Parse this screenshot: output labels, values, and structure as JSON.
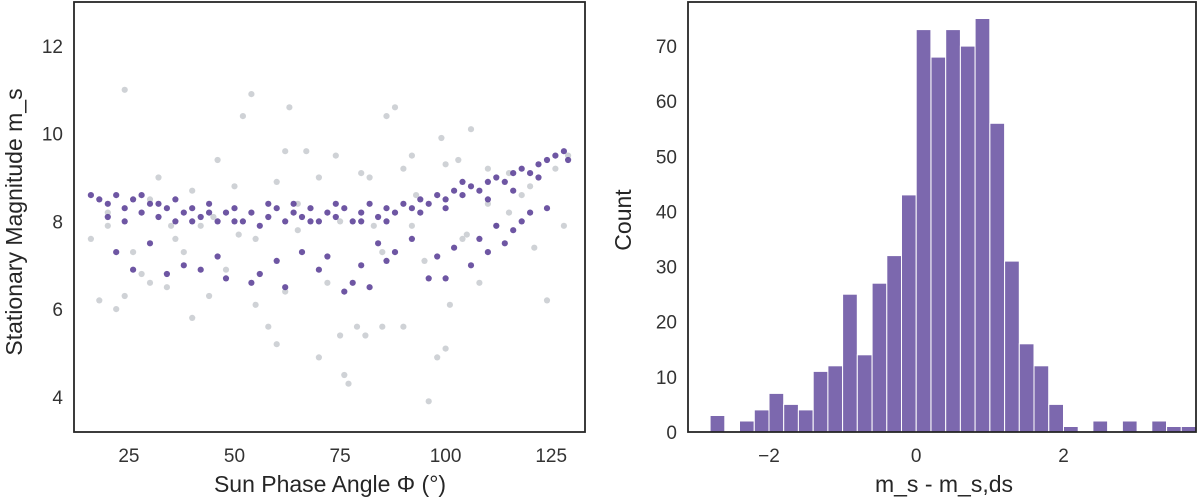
{
  "chart_data": [
    {
      "type": "scatter",
      "xlabel": "Sun Phase Angle Φ (°)",
      "ylabel": "Stationary Magnitude m_s",
      "xlim": [
        12,
        133
      ],
      "ylim": [
        13,
        3.2
      ],
      "y_inverted": true,
      "xticks": [
        25,
        50,
        75,
        100,
        125
      ],
      "yticks": [
        4,
        6,
        8,
        10,
        12
      ],
      "grid": false,
      "legend": "none",
      "series": [
        {
          "color": "#cacdd2",
          "points": [
            [
              16,
              7.6
            ],
            [
              18,
              6.2
            ],
            [
              20,
              7.9
            ],
            [
              22,
              6.0
            ],
            [
              24,
              6.3
            ],
            [
              24,
              11.0
            ],
            [
              26,
              7.3
            ],
            [
              28,
              6.8
            ],
            [
              30,
              6.6
            ],
            [
              32,
              9.0
            ],
            [
              34,
              6.5
            ],
            [
              36,
              7.6
            ],
            [
              38,
              7.3
            ],
            [
              40,
              5.8
            ],
            [
              42,
              7.9
            ],
            [
              44,
              6.3
            ],
            [
              46,
              9.4
            ],
            [
              48,
              6.9
            ],
            [
              51,
              7.7
            ],
            [
              52,
              10.4
            ],
            [
              54,
              10.9
            ],
            [
              55,
              6.1
            ],
            [
              58,
              5.6
            ],
            [
              60,
              5.2
            ],
            [
              62,
              6.4
            ],
            [
              63,
              10.6
            ],
            [
              65,
              8.4
            ],
            [
              67,
              9.6
            ],
            [
              70,
              4.9
            ],
            [
              72,
              6.6
            ],
            [
              75,
              5.4
            ],
            [
              76,
              4.5
            ],
            [
              77,
              4.3
            ],
            [
              79,
              5.6
            ],
            [
              81,
              5.4
            ],
            [
              83,
              7.9
            ],
            [
              85,
              5.6
            ],
            [
              86,
              10.4
            ],
            [
              88,
              10.6
            ],
            [
              90,
              5.6
            ],
            [
              92,
              7.9
            ],
            [
              93,
              8.6
            ],
            [
              96,
              3.9
            ],
            [
              98,
              4.9
            ],
            [
              99,
              9.9
            ],
            [
              100,
              5.1
            ],
            [
              101,
              6.1
            ],
            [
              103,
              9.4
            ],
            [
              104,
              7.6
            ],
            [
              106,
              10.1
            ],
            [
              108,
              6.6
            ],
            [
              110,
              9.2
            ],
            [
              112,
              7.9
            ],
            [
              115,
              9.1
            ],
            [
              118,
              8.6
            ],
            [
              121,
              7.4
            ],
            [
              124,
              6.2
            ],
            [
              126,
              9.2
            ],
            [
              128,
              7.9
            ],
            [
              129,
              9.5
            ],
            [
              20,
              8.2
            ],
            [
              30,
              8.5
            ],
            [
              40,
              8.7
            ],
            [
              50,
              8.8
            ],
            [
              60,
              8.9
            ],
            [
              70,
              9.0
            ],
            [
              80,
              9.1
            ],
            [
              90,
              9.2
            ],
            [
              100,
              9.3
            ],
            [
              110,
              8.4
            ],
            [
              120,
              8.8
            ],
            [
              35,
              7.9
            ],
            [
              45,
              8.1
            ],
            [
              55,
              7.6
            ],
            [
              65,
              7.8
            ],
            [
              75,
              8.0
            ],
            [
              85,
              7.3
            ],
            [
              95,
              7.1
            ],
            [
              105,
              7.7
            ],
            [
              115,
              8.2
            ],
            [
              62,
              9.6
            ],
            [
              82,
              9.0
            ],
            [
              92,
              9.5
            ],
            [
              74,
              9.5
            ]
          ]
        },
        {
          "color": "#5a3f96",
          "points": [
            [
              16,
              8.6
            ],
            [
              18,
              8.5
            ],
            [
              20,
              8.4
            ],
            [
              22,
              8.6
            ],
            [
              24,
              8.3
            ],
            [
              26,
              8.5
            ],
            [
              28,
              8.2
            ],
            [
              30,
              8.4
            ],
            [
              32,
              8.1
            ],
            [
              34,
              8.3
            ],
            [
              36,
              8.0
            ],
            [
              38,
              8.2
            ],
            [
              40,
              8.3
            ],
            [
              42,
              8.1
            ],
            [
              44,
              8.4
            ],
            [
              46,
              8.0
            ],
            [
              48,
              8.2
            ],
            [
              50,
              8.3
            ],
            [
              52,
              8.0
            ],
            [
              54,
              8.2
            ],
            [
              56,
              7.9
            ],
            [
              58,
              8.1
            ],
            [
              60,
              8.3
            ],
            [
              62,
              8.0
            ],
            [
              64,
              8.2
            ],
            [
              66,
              8.1
            ],
            [
              68,
              8.3
            ],
            [
              70,
              8.0
            ],
            [
              72,
              8.2
            ],
            [
              74,
              8.1
            ],
            [
              76,
              8.3
            ],
            [
              78,
              8.0
            ],
            [
              80,
              8.2
            ],
            [
              82,
              8.4
            ],
            [
              84,
              8.1
            ],
            [
              86,
              8.3
            ],
            [
              88,
              8.2
            ],
            [
              90,
              8.4
            ],
            [
              92,
              8.3
            ],
            [
              94,
              8.5
            ],
            [
              96,
              8.4
            ],
            [
              98,
              8.6
            ],
            [
              100,
              8.5
            ],
            [
              102,
              8.7
            ],
            [
              104,
              8.6
            ],
            [
              106,
              8.8
            ],
            [
              108,
              8.7
            ],
            [
              110,
              8.9
            ],
            [
              112,
              9.0
            ],
            [
              114,
              8.9
            ],
            [
              116,
              9.1
            ],
            [
              118,
              9.2
            ],
            [
              120,
              9.1
            ],
            [
              122,
              9.3
            ],
            [
              124,
              9.4
            ],
            [
              126,
              9.5
            ],
            [
              128,
              9.6
            ],
            [
              129,
              9.4
            ],
            [
              22,
              7.3
            ],
            [
              26,
              6.9
            ],
            [
              30,
              7.5
            ],
            [
              34,
              6.8
            ],
            [
              38,
              7.0
            ],
            [
              42,
              6.9
            ],
            [
              46,
              7.2
            ],
            [
              48,
              6.7
            ],
            [
              54,
              6.6
            ],
            [
              56,
              6.8
            ],
            [
              60,
              7.1
            ],
            [
              62,
              6.5
            ],
            [
              66,
              7.3
            ],
            [
              70,
              6.9
            ],
            [
              72,
              7.2
            ],
            [
              76,
              6.4
            ],
            [
              78,
              6.6
            ],
            [
              80,
              7.0
            ],
            [
              82,
              6.5
            ],
            [
              84,
              7.5
            ],
            [
              86,
              7.1
            ],
            [
              88,
              7.3
            ],
            [
              92,
              7.6
            ],
            [
              96,
              6.7
            ],
            [
              98,
              7.2
            ],
            [
              100,
              6.7
            ],
            [
              102,
              7.4
            ],
            [
              106,
              7.0
            ],
            [
              108,
              7.6
            ],
            [
              110,
              7.3
            ],
            [
              112,
              7.9
            ],
            [
              114,
              7.5
            ],
            [
              116,
              7.8
            ],
            [
              118,
              8.0
            ],
            [
              120,
              8.2
            ],
            [
              124,
              8.3
            ],
            [
              20,
              8.1
            ],
            [
              24,
              8.0
            ],
            [
              28,
              8.6
            ],
            [
              32,
              8.4
            ],
            [
              36,
              8.5
            ],
            [
              40,
              8.0
            ],
            [
              44,
              8.2
            ],
            [
              50,
              8.0
            ],
            [
              58,
              8.4
            ],
            [
              64,
              8.4
            ],
            [
              68,
              8.0
            ],
            [
              74,
              8.4
            ],
            [
              80,
              8.0
            ],
            [
              86,
              8.0
            ],
            [
              94,
              8.2
            ],
            [
              100,
              8.3
            ],
            [
              104,
              8.9
            ],
            [
              110,
              8.5
            ],
            [
              116,
              8.7
            ],
            [
              122,
              9.0
            ]
          ]
        }
      ]
    },
    {
      "type": "bar",
      "xlabel": "m_s - m_s,ds",
      "ylabel": "Count",
      "xlim": [
        -3.1,
        3.8
      ],
      "ylim": [
        0,
        78
      ],
      "xticks": [
        -2,
        0,
        2
      ],
      "yticks": [
        0,
        10,
        20,
        30,
        40,
        50,
        60,
        70
      ],
      "bin_width": 0.2,
      "grid": false,
      "color": "#7c68ae",
      "bins": [
        {
          "x": -2.7,
          "count": 3
        },
        {
          "x": -2.5,
          "count": 0
        },
        {
          "x": -2.3,
          "count": 2
        },
        {
          "x": -2.1,
          "count": 4
        },
        {
          "x": -1.9,
          "count": 7
        },
        {
          "x": -1.7,
          "count": 5
        },
        {
          "x": -1.5,
          "count": 4
        },
        {
          "x": -1.3,
          "count": 11
        },
        {
          "x": -1.1,
          "count": 12
        },
        {
          "x": -0.9,
          "count": 25
        },
        {
          "x": -0.7,
          "count": 14
        },
        {
          "x": -0.5,
          "count": 27
        },
        {
          "x": -0.3,
          "count": 32
        },
        {
          "x": -0.1,
          "count": 43
        },
        {
          "x": 0.1,
          "count": 73
        },
        {
          "x": 0.3,
          "count": 68
        },
        {
          "x": 0.5,
          "count": 73
        },
        {
          "x": 0.7,
          "count": 70
        },
        {
          "x": 0.9,
          "count": 75
        },
        {
          "x": 1.1,
          "count": 56
        },
        {
          "x": 1.3,
          "count": 31
        },
        {
          "x": 1.5,
          "count": 16
        },
        {
          "x": 1.7,
          "count": 12
        },
        {
          "x": 1.9,
          "count": 5
        },
        {
          "x": 2.1,
          "count": 1
        },
        {
          "x": 2.3,
          "count": 0
        },
        {
          "x": 2.5,
          "count": 2
        },
        {
          "x": 2.7,
          "count": 0
        },
        {
          "x": 2.9,
          "count": 2
        },
        {
          "x": 3.1,
          "count": 0
        },
        {
          "x": 3.3,
          "count": 2
        },
        {
          "x": 3.5,
          "count": 1
        },
        {
          "x": 3.7,
          "count": 1
        }
      ]
    }
  ]
}
